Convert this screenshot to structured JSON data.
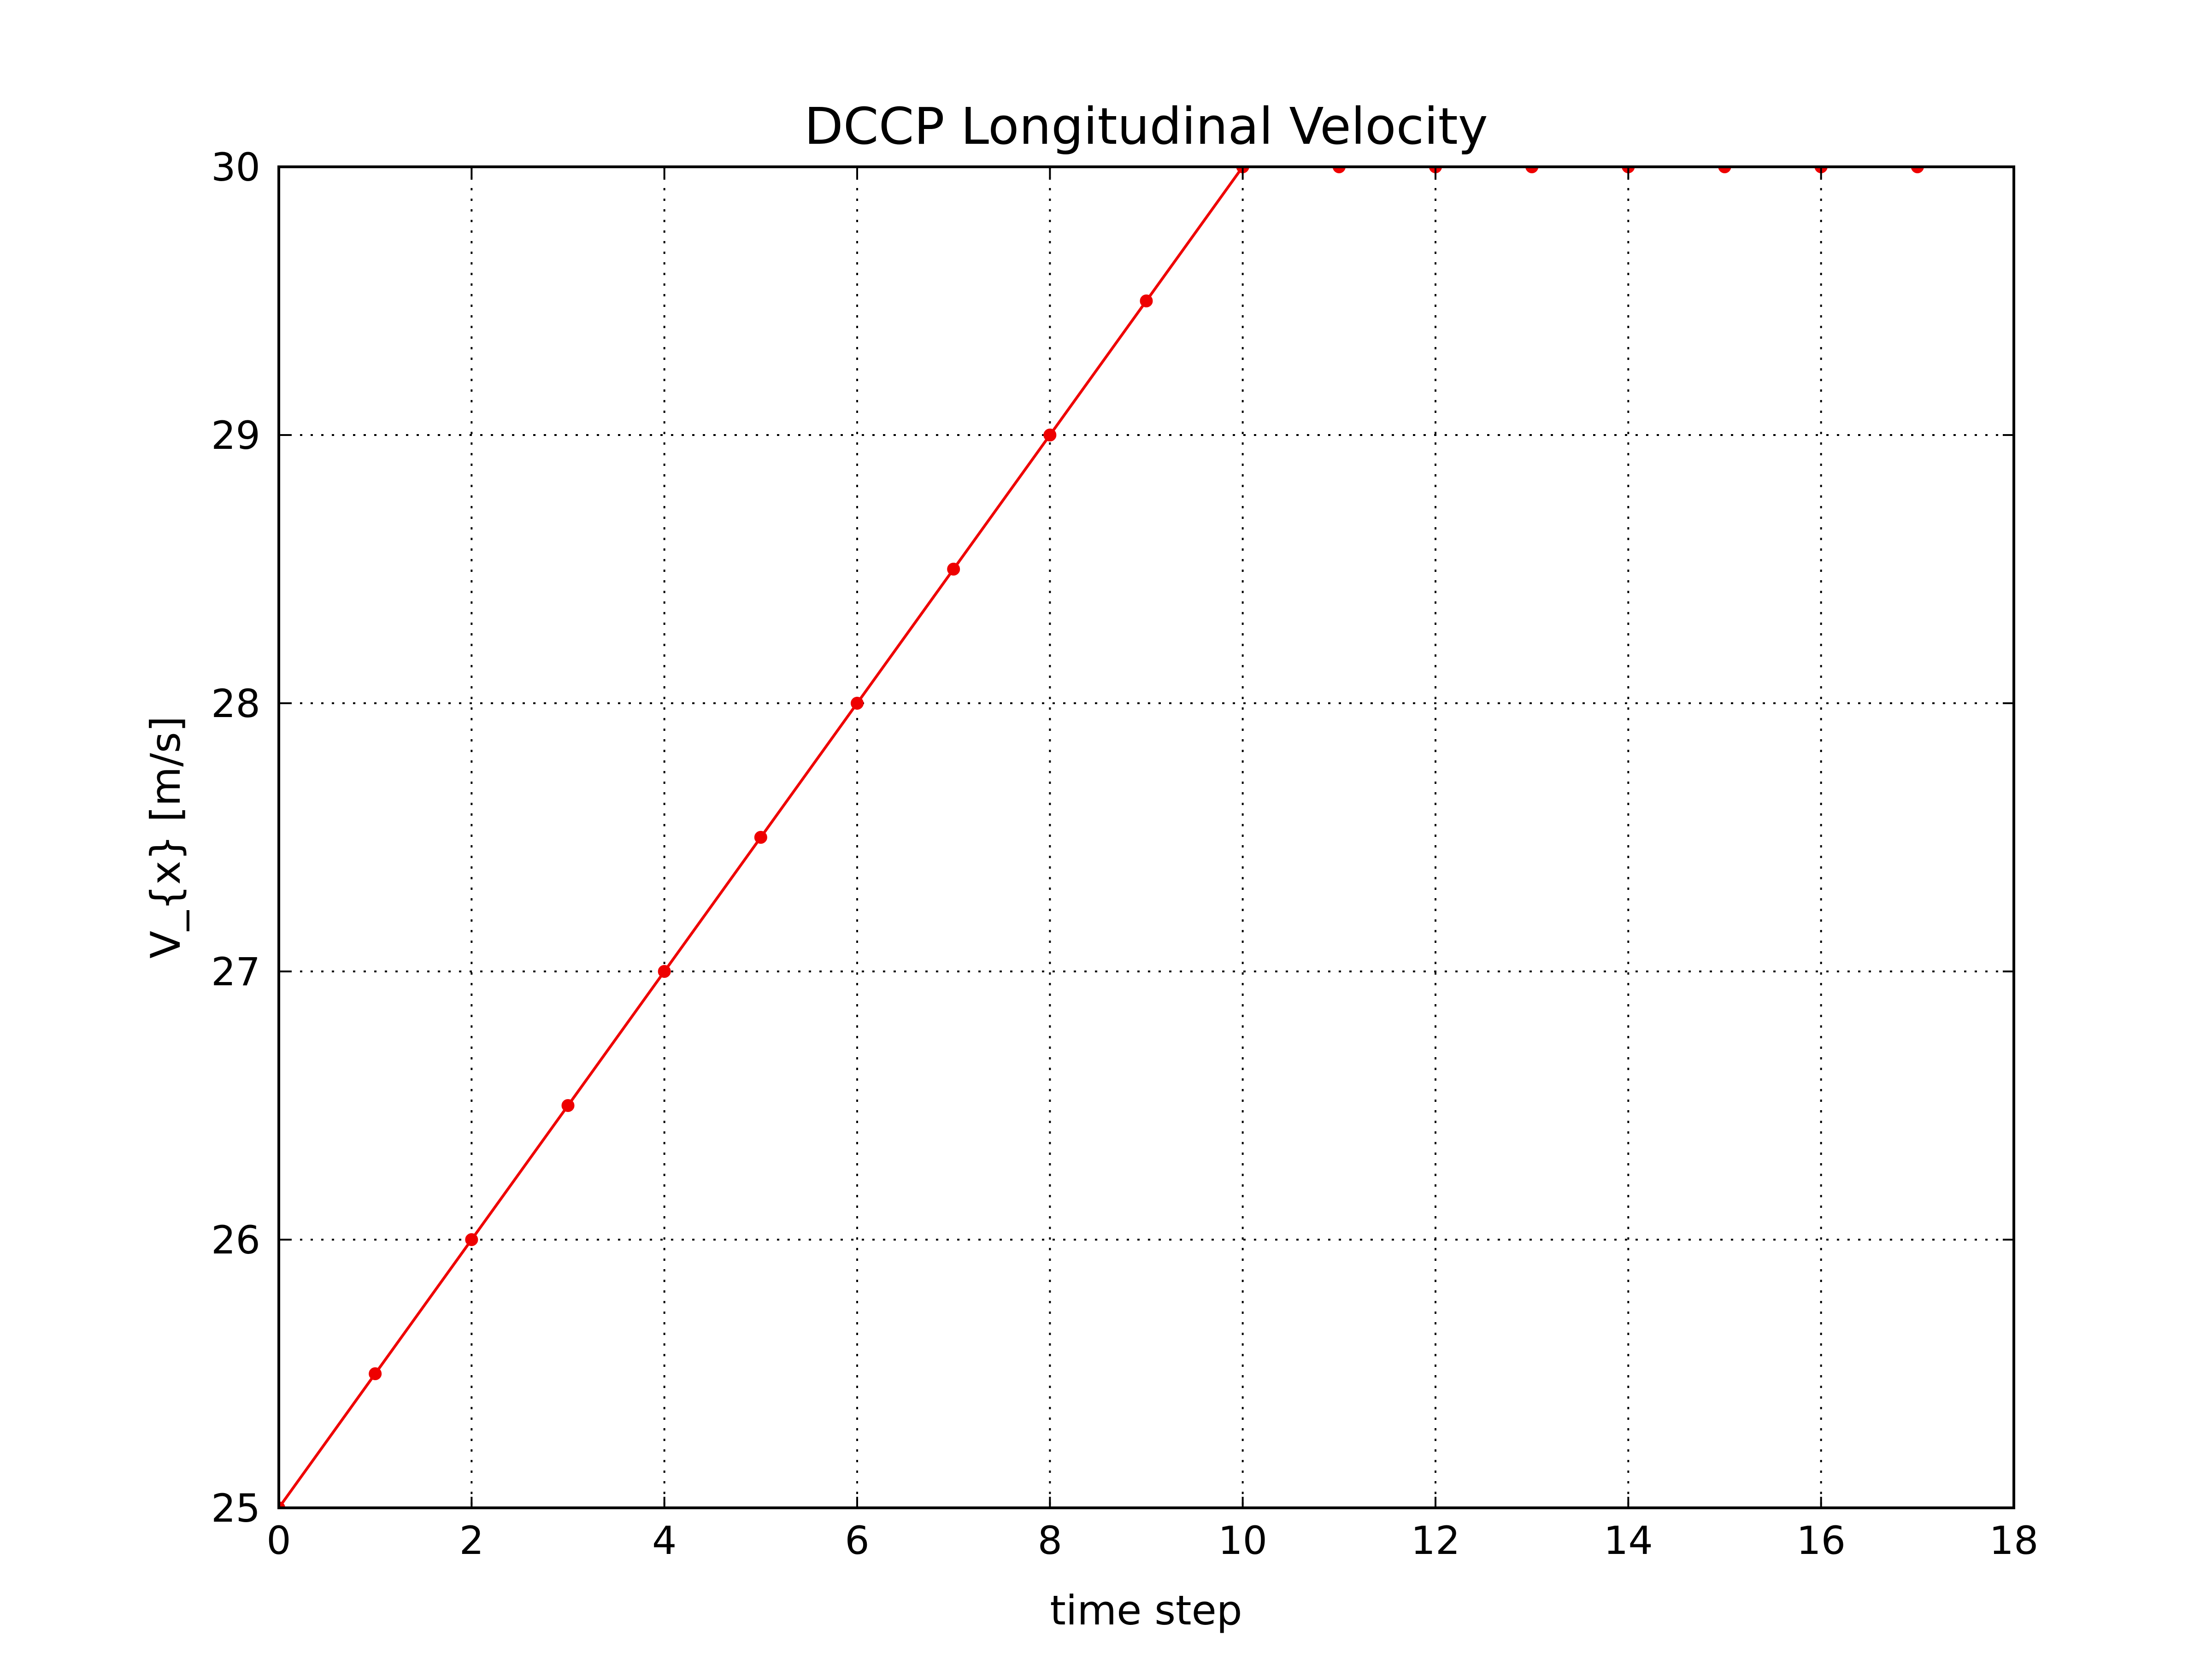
{
  "chart_data": {
    "type": "line",
    "title": "DCCP Longitudinal Velocity",
    "xlabel": "time step",
    "ylabel": "V_{x} [m/s]",
    "xlim": [
      0,
      18
    ],
    "ylim": [
      25,
      30
    ],
    "xticks": [
      "0",
      "2",
      "4",
      "6",
      "8",
      "10",
      "12",
      "14",
      "16",
      "18"
    ],
    "yticks": [
      "25",
      "26",
      "27",
      "28",
      "29",
      "30"
    ],
    "grid": true,
    "color": "#ee0000",
    "series": [
      {
        "x": [
          0,
          1,
          2,
          3,
          4,
          5,
          6,
          7,
          8,
          9,
          10,
          11,
          12,
          13,
          14,
          15,
          16,
          17
        ],
        "y": [
          25.0,
          25.5,
          26.0,
          26.5,
          27.0,
          27.5,
          28.0,
          28.5,
          29.0,
          29.5,
          30.0,
          30.0,
          30.0,
          30.0,
          30.0,
          30.0,
          30.0,
          30.0
        ]
      }
    ]
  }
}
